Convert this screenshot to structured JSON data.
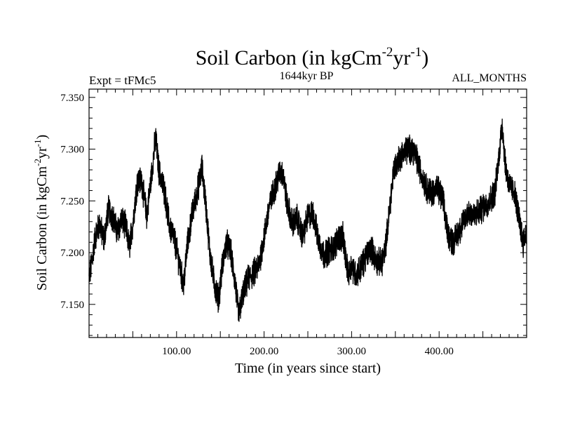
{
  "chart_data": {
    "type": "line",
    "title": {
      "main": "Soil Carbon (in kgCm",
      "sup1": "-2",
      "mid": "yr",
      "sup2": "-1",
      "end": ")"
    },
    "subtitle_left": "Expt = tFMc5",
    "subtitle_center": "1644kyr BP",
    "subtitle_right": "ALL_MONTHS",
    "xlabel": "Time (in years since start)",
    "ylabel": {
      "main": "Soil Carbon (in kgCm",
      "sup1": "-2",
      "mid": "yr",
      "sup2": "-1",
      "end": ")"
    },
    "xlim": [
      0,
      500
    ],
    "ylim": [
      7.118,
      7.358
    ],
    "x_ticks": [
      {
        "value": 100,
        "label": "100.00"
      },
      {
        "value": 200,
        "label": "200.00"
      },
      {
        "value": 300,
        "label": "300.00"
      },
      {
        "value": 400,
        "label": "400.00"
      }
    ],
    "y_ticks": [
      {
        "value": 7.15,
        "label": "7.150"
      },
      {
        "value": 7.2,
        "label": "7.200"
      },
      {
        "value": 7.25,
        "label": "7.250"
      },
      {
        "value": 7.3,
        "label": "7.300"
      },
      {
        "value": 7.35,
        "label": "7.350"
      }
    ],
    "series": [
      {
        "name": "Soil Carbon",
        "color": "#000000",
        "noise_amplitude": 0.012,
        "x": [
          0,
          3,
          7,
          12,
          17,
          22,
          27,
          32,
          37,
          42,
          46,
          50,
          55,
          60,
          66,
          72,
          76,
          80,
          86,
          92,
          97,
          103,
          108,
          112,
          118,
          124,
          129,
          133,
          138,
          143,
          148,
          152,
          157,
          162,
          167,
          171,
          176,
          182,
          188,
          194,
          200,
          206,
          212,
          218,
          222,
          226,
          232,
          238,
          244,
          250,
          256,
          262,
          268,
          274,
          280,
          285,
          290,
          296,
          300,
          305,
          310,
          316,
          322,
          328,
          334,
          338,
          342,
          348,
          354,
          360,
          366,
          370,
          374,
          380,
          386,
          392,
          398,
          404,
          410,
          416,
          422,
          428,
          434,
          440,
          446,
          452,
          458,
          464,
          468,
          472,
          476,
          480,
          486,
          492,
          496,
          500
        ],
        "y": [
          7.175,
          7.19,
          7.215,
          7.228,
          7.212,
          7.242,
          7.235,
          7.22,
          7.232,
          7.225,
          7.205,
          7.228,
          7.268,
          7.27,
          7.235,
          7.28,
          7.312,
          7.278,
          7.26,
          7.225,
          7.215,
          7.19,
          7.168,
          7.205,
          7.238,
          7.26,
          7.282,
          7.25,
          7.2,
          7.17,
          7.155,
          7.185,
          7.21,
          7.2,
          7.17,
          7.14,
          7.16,
          7.175,
          7.18,
          7.188,
          7.215,
          7.245,
          7.262,
          7.278,
          7.275,
          7.248,
          7.228,
          7.233,
          7.215,
          7.235,
          7.238,
          7.212,
          7.198,
          7.202,
          7.205,
          7.215,
          7.215,
          7.178,
          7.188,
          7.178,
          7.185,
          7.195,
          7.205,
          7.192,
          7.19,
          7.2,
          7.23,
          7.28,
          7.29,
          7.298,
          7.3,
          7.3,
          7.292,
          7.275,
          7.262,
          7.258,
          7.262,
          7.252,
          7.218,
          7.21,
          7.22,
          7.23,
          7.24,
          7.235,
          7.24,
          7.245,
          7.25,
          7.26,
          7.29,
          7.325,
          7.282,
          7.265,
          7.258,
          7.23,
          7.21,
          7.22
        ]
      }
    ]
  }
}
